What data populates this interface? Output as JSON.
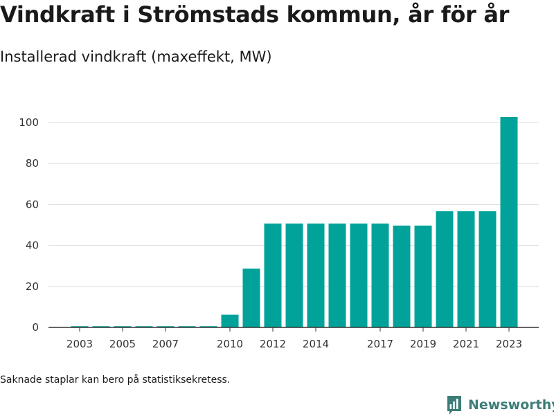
{
  "header": {
    "title": "Vindkraft i Strömstads kommun, år för år",
    "subtitle": "Installerad vindkraft (maxeffekt, MW)"
  },
  "footnote": "Saknade staplar kan bero på statistiksekretess.",
  "brand": {
    "name": "Newsworthy",
    "icon": "newsworthy-logo-icon"
  },
  "colors": {
    "bar": "#00a29a",
    "grid": "#dddddd",
    "axis": "#333333",
    "brand": "#3c7d78"
  },
  "chart_data": {
    "type": "bar",
    "categories": [
      2003,
      2004,
      2005,
      2006,
      2007,
      2008,
      2009,
      2010,
      2011,
      2012,
      2013,
      2014,
      2015,
      2016,
      2017,
      2018,
      2019,
      2020,
      2021,
      2022,
      2023
    ],
    "values": [
      0.6,
      0.6,
      0.6,
      0.6,
      0.6,
      0.6,
      0.6,
      6.2,
      28.7,
      50.7,
      50.7,
      50.7,
      50.7,
      50.7,
      50.7,
      49.7,
      49.7,
      56.7,
      56.7,
      56.7,
      102.7
    ],
    "x_tick_labels": [
      "2003",
      "2005",
      "2007",
      "2010",
      "2012",
      "2014",
      "2017",
      "2019",
      "2021",
      "2023"
    ],
    "y_ticks": [
      0,
      20,
      40,
      60,
      80,
      100
    ],
    "ylim": [
      0,
      105
    ],
    "title": "Vindkraft i Strömstads kommun, år för år",
    "subtitle": "Installerad vindkraft (maxeffekt, MW)",
    "xlabel": "",
    "ylabel": "",
    "grid": true,
    "legend": "none"
  }
}
